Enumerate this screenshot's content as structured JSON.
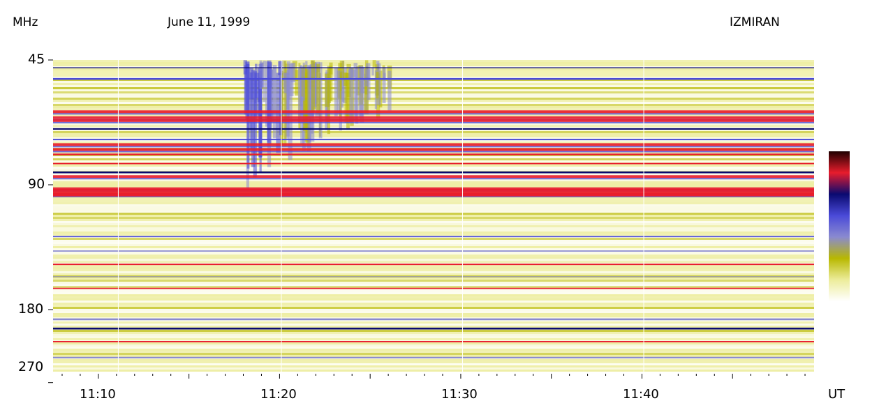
{
  "chart_data": {
    "type": "heatmap",
    "title": "June 11, 1999",
    "observatory": "IZMIRAN",
    "ylabel": "MHz",
    "xlabel": "UT",
    "y_axis_scale": "log",
    "y_ticks": [
      45,
      90,
      180,
      270
    ],
    "y_tick_labels": [
      "45",
      "90",
      "180",
      "270"
    ],
    "x_ticks": [
      "11:10",
      "11:20",
      "11:30",
      "11:40"
    ],
    "x_range": [
      "11:07.5",
      "11:49.5"
    ],
    "y_range": [
      45,
      270
    ],
    "colorscale": [
      "#ffffff",
      "#ecec9a",
      "#b8b800",
      "#8a8ad0",
      "#4a4ad8",
      "#0a0a70",
      "#e81c2c",
      "#200000"
    ],
    "features": [
      {
        "name": "drifting burst",
        "start": "11:18",
        "end": "11:26",
        "freq_low": 45,
        "freq_high": 90
      },
      {
        "name": "interference band",
        "freq": [
          60,
          62,
          63,
          72,
          74,
          86,
          92,
          95
        ]
      }
    ]
  }
}
